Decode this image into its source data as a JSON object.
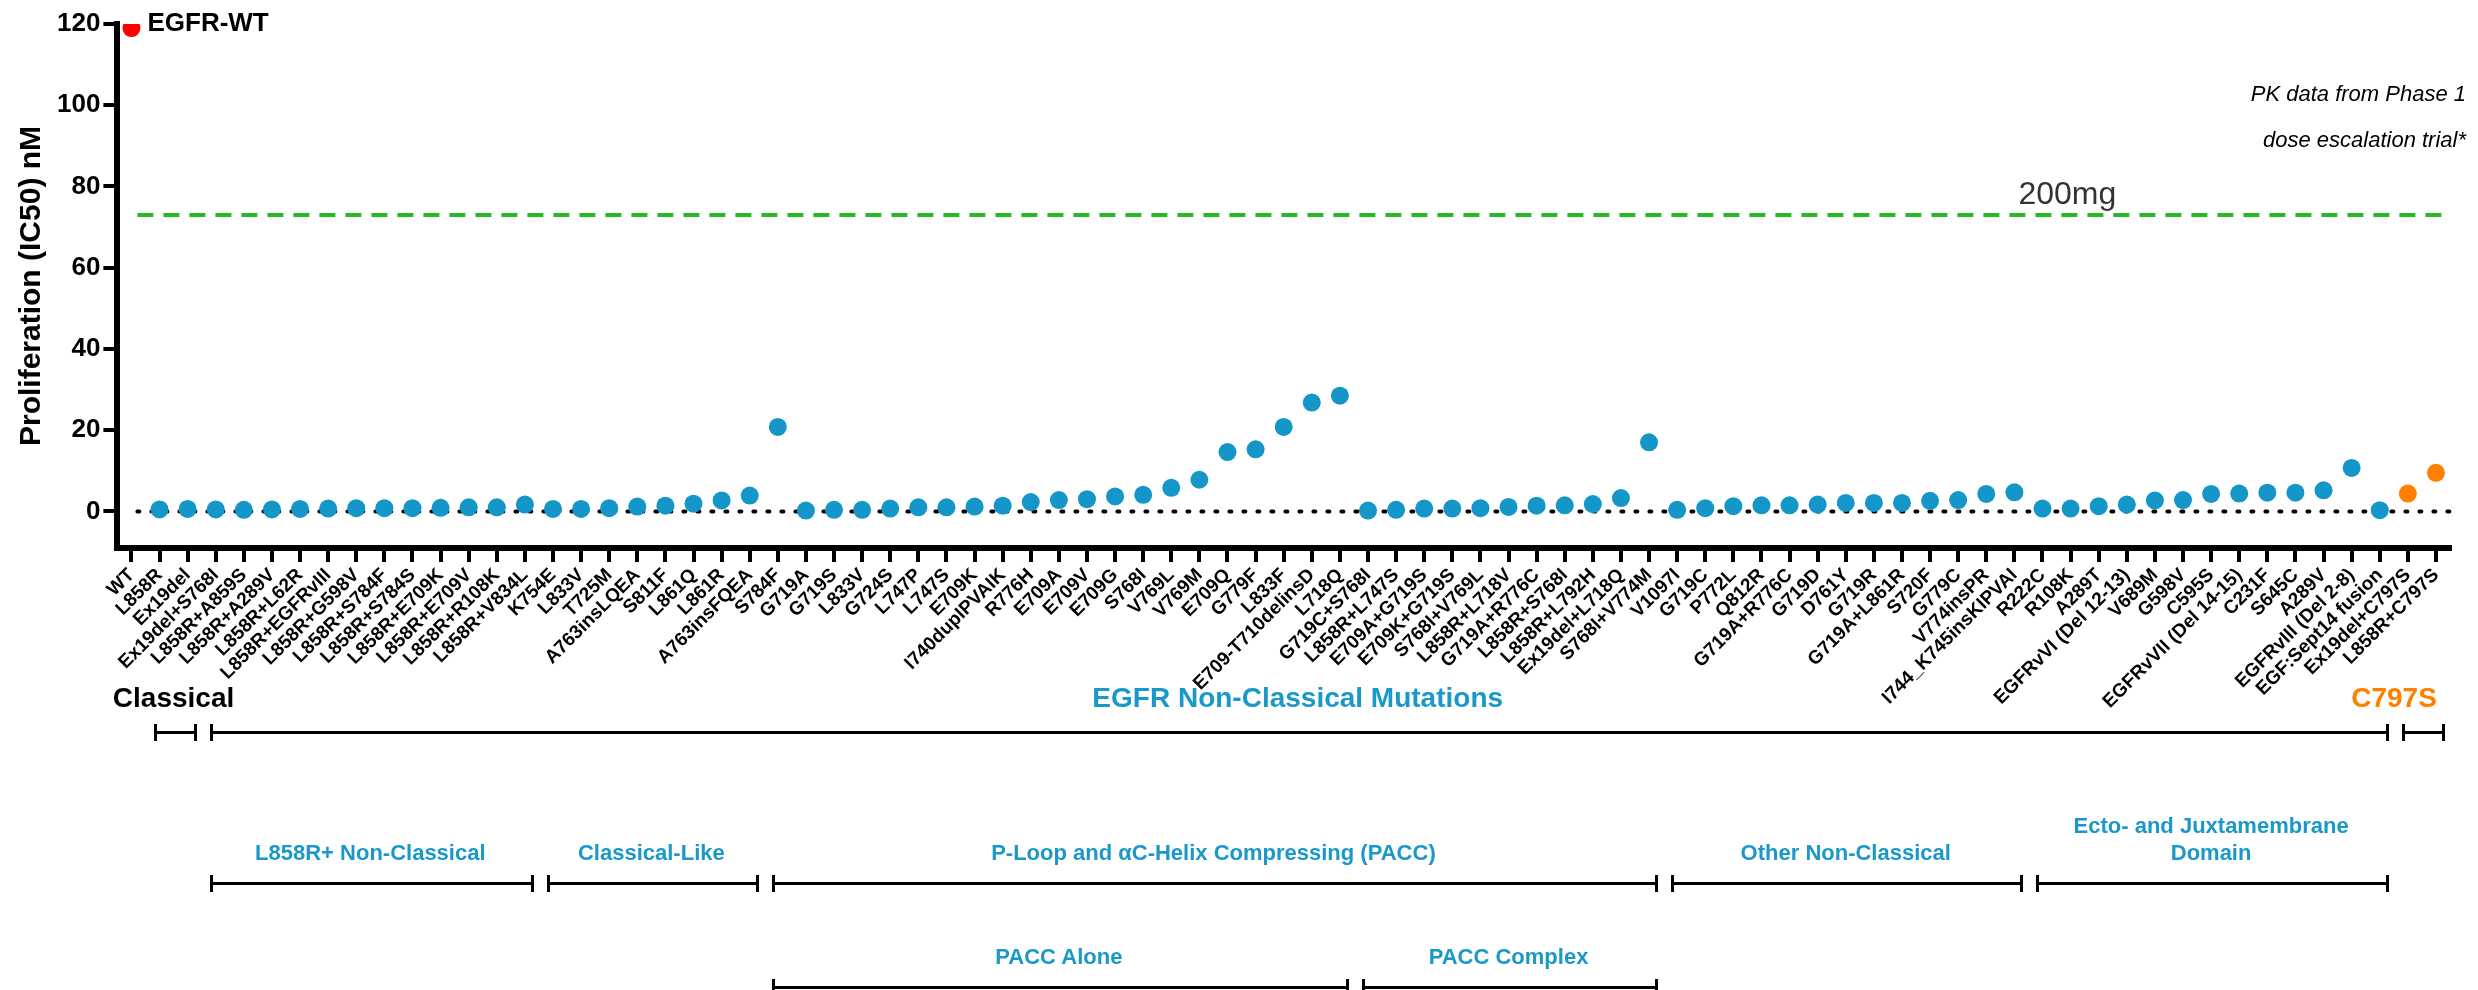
{
  "chart_data": {
    "type": "scatter",
    "ylabel": "Proliferation (IC50) nM",
    "categories": [
      "WT",
      "L858R",
      "Ex19del",
      "Ex19del+S768I",
      "L858R+A859S",
      "L858R+A289V",
      "L858R+L62R",
      "L858R+EGFRvIII",
      "L858R+G598V",
      "L858R+S784F",
      "L858R+S784S",
      "L858R+E709K",
      "L858R+E709V",
      "L858R+R108K",
      "L858R+V834L",
      "K754E",
      "L833V",
      "T725M",
      "A763insLQEA",
      "S811F",
      "L861Q",
      "L861R",
      "A763insFQEA",
      "S784F",
      "G719A",
      "G719S",
      "L833V",
      "G724S",
      "L747P",
      "L747S",
      "E709K",
      "I740dupIPVAIK",
      "R776H",
      "E709A",
      "E709V",
      "E709G",
      "S768I",
      "V769L",
      "V769M",
      "E709Q",
      "G779F",
      "L833F",
      "E709-T710delinsD",
      "L718Q",
      "G719C+S768I",
      "L858R+L747S",
      "E709A+G719S",
      "E709K+G719S",
      "S768I+V769L",
      "L858R+L718V",
      "G719A+R776C",
      "L858R+S768I",
      "L858R+L792H",
      "Ex19del+L718Q",
      "S768I+V774M",
      "V1097I",
      "G719C",
      "P772L",
      "Q812R",
      "G719A+R776C",
      "G719D",
      "D761Y",
      "G719R",
      "G719A+L861R",
      "S720F",
      "G779C",
      "V774insPR",
      "I744_K745insKIPVAI",
      "R222C",
      "R108K",
      "A289T",
      "EGFRvVI (Del 12-13)",
      "V689M",
      "G598V",
      "C595S",
      "EGFRvVII (Del 14-15)",
      "C231F",
      "S645C",
      "A289V",
      "EGFRvIII (Del 2-8)",
      "EGF:Sept14 fusion",
      "Ex19del+C797S",
      "L858R+C797S"
    ],
    "values": [
      119,
      0.5,
      0.6,
      0.5,
      0.4,
      0.5,
      0.6,
      0.7,
      0.8,
      0.8,
      0.8,
      0.9,
      1.0,
      1.0,
      1.7,
      0.6,
      0.6,
      0.8,
      1.2,
      1.4,
      1.9,
      2.7,
      3.9,
      20.8,
      0.2,
      0.4,
      0.4,
      0.7,
      1.0,
      1.0,
      1.2,
      1.4,
      2.3,
      2.8,
      3.0,
      3.7,
      4.1,
      5.8,
      7.8,
      14.6,
      15.3,
      20.8,
      26.8,
      28.5,
      0.2,
      0.4,
      0.7,
      0.7,
      0.8,
      1.1,
      1.4,
      1.5,
      1.8,
      3.3,
      17.0,
      0.4,
      0.8,
      1.3,
      1.5,
      1.5,
      1.7,
      2.1,
      2.1,
      2.1,
      2.6,
      2.8,
      4.3,
      4.7,
      0.7,
      0.7,
      1.3,
      1.7,
      2.7,
      2.8,
      4.3,
      4.4,
      4.6,
      4.6,
      5.2,
      10.7,
      0.3,
      4.4,
      9.5
    ],
    "colors": [
      "#ff0000",
      "#1496c8",
      "#1496c8",
      "#1496c8",
      "#1496c8",
      "#1496c8",
      "#1496c8",
      "#1496c8",
      "#1496c8",
      "#1496c8",
      "#1496c8",
      "#1496c8",
      "#1496c8",
      "#1496c8",
      "#1496c8",
      "#1496c8",
      "#1496c8",
      "#1496c8",
      "#1496c8",
      "#1496c8",
      "#1496c8",
      "#1496c8",
      "#1496c8",
      "#1496c8",
      "#1496c8",
      "#1496c8",
      "#1496c8",
      "#1496c8",
      "#1496c8",
      "#1496c8",
      "#1496c8",
      "#1496c8",
      "#1496c8",
      "#1496c8",
      "#1496c8",
      "#1496c8",
      "#1496c8",
      "#1496c8",
      "#1496c8",
      "#1496c8",
      "#1496c8",
      "#1496c8",
      "#1496c8",
      "#1496c8",
      "#1496c8",
      "#1496c8",
      "#1496c8",
      "#1496c8",
      "#1496c8",
      "#1496c8",
      "#1496c8",
      "#1496c8",
      "#1496c8",
      "#1496c8",
      "#1496c8",
      "#1496c8",
      "#1496c8",
      "#1496c8",
      "#1496c8",
      "#1496c8",
      "#1496c8",
      "#1496c8",
      "#1496c8",
      "#1496c8",
      "#1496c8",
      "#1496c8",
      "#1496c8",
      "#1496c8",
      "#1496c8",
      "#1496c8",
      "#1496c8",
      "#1496c8",
      "#1496c8",
      "#1496c8",
      "#1496c8",
      "#1496c8",
      "#1496c8",
      "#1496c8",
      "#1496c8",
      "#1496c8",
      "#1496c8",
      "#ff8000",
      "#ff8000"
    ],
    "ylim": [
      -9,
      120
    ],
    "yticks": [
      0,
      20,
      40,
      60,
      80,
      100,
      120
    ],
    "grid": false,
    "marker": "circle",
    "ref_lines": [
      {
        "axis": "y",
        "value": 73,
        "label": "200mg",
        "color": "#22bb22",
        "line_style": "dashed"
      },
      {
        "axis": "y",
        "value": 0,
        "color": "#000000",
        "line_style": "dotted"
      }
    ],
    "annotations": [
      {
        "text": "EGFR-WT",
        "x": "WT",
        "y": 119
      },
      "PK data from Phase 1 dose escalation trial*",
      "Classical",
      "EGFR Non-Classical Mutations",
      "C797S",
      "L858R+ Non-Classical",
      "Classical-Like",
      "P-Loop and αC-Helix Compressing (PACC)",
      "Other Non-Classical",
      "Ecto- and Juxtamembrane Domain",
      "PACC Alone",
      "PACC Complex"
    ]
  }
}
